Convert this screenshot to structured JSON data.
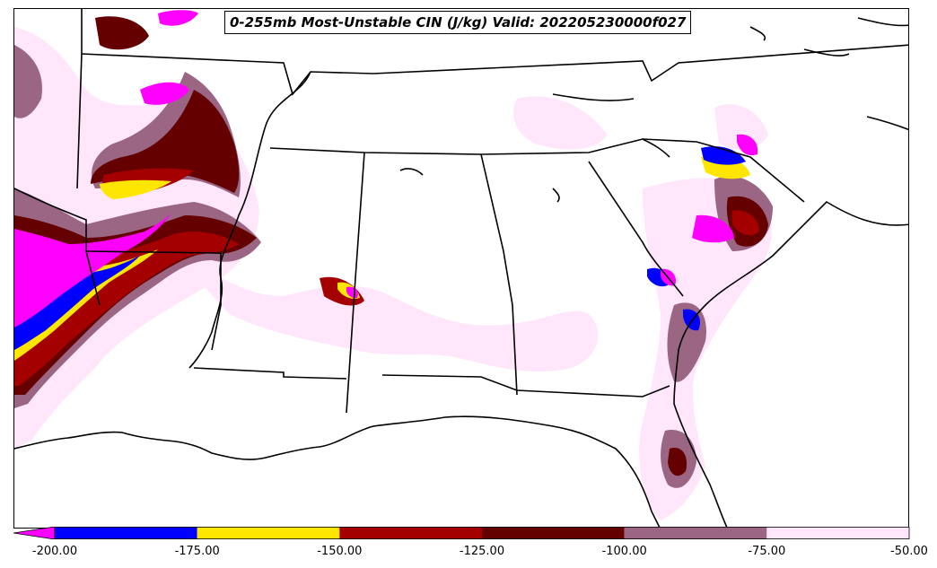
{
  "title": "0-255mb Most-Unstable CIN (J/kg) Valid: 202205230000f027",
  "colorbar": {
    "under_color": "#ff00ff",
    "bins": [
      {
        "from": -200,
        "to": -175,
        "color": "#0000ff"
      },
      {
        "from": -175,
        "to": -150,
        "color": "#ffe600"
      },
      {
        "from": -150,
        "to": -125,
        "color": "#a40000"
      },
      {
        "from": -125,
        "to": -100,
        "color": "#650000"
      },
      {
        "from": -100,
        "to": -75,
        "color": "#9a6684"
      },
      {
        "from": -75,
        "to": -50,
        "color": "#ffe6fb"
      }
    ],
    "tick_labels": [
      "-200.00",
      "-175.00",
      "-150.00",
      "-125.00",
      "-100.00",
      "-75.00",
      "-50.00"
    ]
  }
}
